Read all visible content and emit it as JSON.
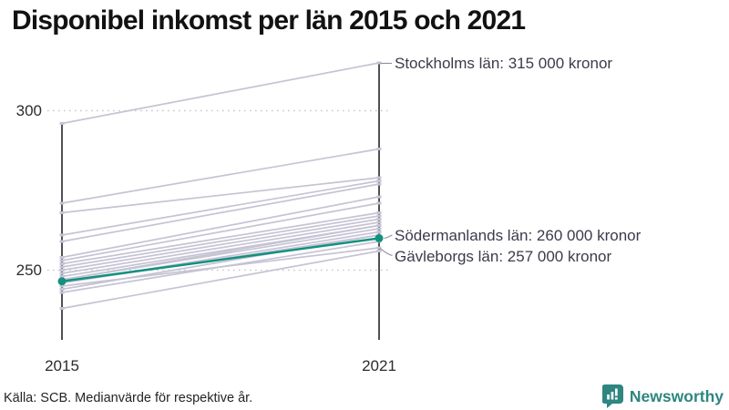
{
  "title": "Disponibel inkomst per län 2015 och 2021",
  "footer": {
    "source": "Källa: SCB. Medianvärde för respektive år."
  },
  "branding": {
    "name": "Newsworthy",
    "icon": "bar-chart-bubble-icon",
    "color": "#2e8680"
  },
  "chart_data": {
    "type": "line",
    "subtype": "slope-chart",
    "title": "Disponibel inkomst per län 2015 och 2021",
    "x": [
      2015,
      2021
    ],
    "x_labels": [
      "2015",
      "2021"
    ],
    "yticks": [
      250,
      300
    ],
    "ylim": [
      228,
      318
    ],
    "y_scale_note": "axis in thousands of kronor",
    "grid": "dotted horizontal lines at yticks",
    "legend": "none",
    "colors": {
      "highlight": "#12917f",
      "line": "#c6c3d4",
      "axis": "#16161d",
      "grid": "#c9c9cf",
      "leader": "#8e8e9a"
    },
    "series": [
      {
        "name": "Stockholms län",
        "values": [
          296,
          315
        ],
        "highlight": false
      },
      {
        "name": "",
        "values": [
          271,
          288
        ],
        "highlight": false
      },
      {
        "name": "",
        "values": [
          268,
          279
        ],
        "highlight": false
      },
      {
        "name": "",
        "values": [
          261,
          278
        ],
        "highlight": false
      },
      {
        "name": "",
        "values": [
          259,
          277
        ],
        "highlight": false
      },
      {
        "name": "",
        "values": [
          254,
          273
        ],
        "highlight": false
      },
      {
        "name": "",
        "values": [
          253,
          271
        ],
        "highlight": false
      },
      {
        "name": "",
        "values": [
          252,
          268
        ],
        "highlight": false
      },
      {
        "name": "",
        "values": [
          251,
          267
        ],
        "highlight": false
      },
      {
        "name": "",
        "values": [
          250,
          266
        ],
        "highlight": false
      },
      {
        "name": "",
        "values": [
          249,
          265
        ],
        "highlight": false
      },
      {
        "name": "",
        "values": [
          248,
          264
        ],
        "highlight": false
      },
      {
        "name": "",
        "values": [
          247,
          264
        ],
        "highlight": false
      },
      {
        "name": "",
        "values": [
          247,
          263
        ],
        "highlight": false
      },
      {
        "name": "",
        "values": [
          246,
          262
        ],
        "highlight": false
      },
      {
        "name": "",
        "values": [
          246,
          261
        ],
        "highlight": false
      },
      {
        "name": "",
        "values": [
          244,
          261
        ],
        "highlight": false
      },
      {
        "name": "",
        "values": [
          243,
          259
        ],
        "highlight": false
      },
      {
        "name": "",
        "values": [
          238,
          256
        ],
        "highlight": false
      },
      {
        "name": "Gävleborgs län",
        "values": [
          245,
          257
        ],
        "highlight": false
      },
      {
        "name": "Södermanlands län",
        "values": [
          246.5,
          260
        ],
        "highlight": true
      }
    ],
    "annotations": [
      {
        "text": "Stockholms län: 315 000 kronor",
        "value_2021": 315
      },
      {
        "text": "Södermanlands län: 260 000 kronor",
        "value_2021": 260
      },
      {
        "text": "Gävleborgs län: 257 000 kronor",
        "value_2021": 257
      }
    ]
  }
}
